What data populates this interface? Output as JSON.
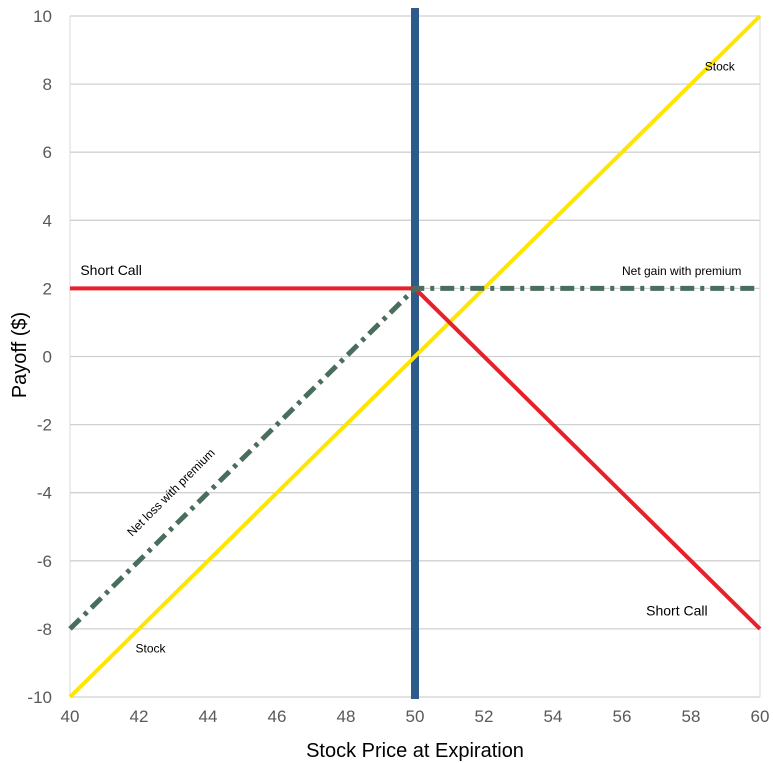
{
  "chart_data": {
    "type": "line",
    "title": "",
    "xlabel": "Stock Price at Expiration",
    "ylabel": "Payoff ($)",
    "xlim": [
      40,
      60
    ],
    "ylim": [
      -10,
      10
    ],
    "x_ticks": [
      "40",
      "42",
      "44",
      "46",
      "48",
      "50",
      "52",
      "54",
      "56",
      "58",
      "60"
    ],
    "y_ticks": [
      "-10",
      "-8",
      "-6",
      "-4",
      "-2",
      "0",
      "2",
      "4",
      "6",
      "8",
      "10"
    ],
    "grid": "horizontal",
    "legend": "none",
    "series": [
      {
        "key": "stock",
        "color": "#FFE600",
        "style": "solid",
        "points": [
          [
            40,
            -10
          ],
          [
            60,
            10
          ]
        ]
      },
      {
        "key": "short_call",
        "color": "#E8202A",
        "style": "solid",
        "points": [
          [
            40,
            2
          ],
          [
            50,
            2
          ],
          [
            60,
            -8
          ]
        ]
      },
      {
        "key": "net_premium",
        "color": "#4A6E5E",
        "style": "dash-dot",
        "points": [
          [
            40,
            -8
          ],
          [
            50,
            2
          ],
          [
            60,
            2
          ]
        ]
      }
    ],
    "vline": {
      "x": 50,
      "color": "#2E5C8A"
    },
    "annotations": [
      {
        "text": "Short Call",
        "x": 40.3,
        "y": 2.4,
        "cls": "annot",
        "rotate": false
      },
      {
        "text": "Short Call",
        "x": 56.7,
        "y": -7.6,
        "cls": "annot",
        "rotate": false
      },
      {
        "text": "Stock",
        "x": 58.4,
        "y": 8.4,
        "cls": "annot-small",
        "rotate": false
      },
      {
        "text": "Stock",
        "x": 41.9,
        "y": -8.7,
        "cls": "annot-small",
        "rotate": false
      },
      {
        "text": "Net gain with premium",
        "x": 56.0,
        "y": 2.4,
        "cls": "annot-small",
        "rotate": false
      },
      {
        "text": "Net loss with premium",
        "x": 41.8,
        "y": -5.3,
        "cls": "annot-small",
        "rotate": true
      }
    ]
  }
}
